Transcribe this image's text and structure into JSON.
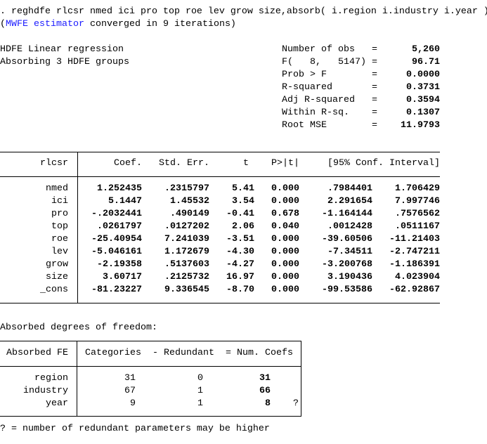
{
  "command": ". reghdfe rlcsr nmed ici pro top roe lev grow size,absorb( i.region i.industry i.year )",
  "convergence": {
    "open": "(",
    "link": "MWFE estimator",
    "rest": " converged in 9 iterations)"
  },
  "model_title": "HDFE Linear regression",
  "model_subtitle": "Absorbing 3 HDFE groups",
  "stats": [
    {
      "label": "Number of obs",
      "eq": "=",
      "value": "5,260"
    },
    {
      "label": "F(   8,   5147)",
      "eq": "=",
      "value": "96.71"
    },
    {
      "label": "Prob > F",
      "eq": "=",
      "value": "0.0000"
    },
    {
      "label": "R-squared",
      "eq": "=",
      "value": "0.3731"
    },
    {
      "label": "Adj R-squared",
      "eq": "=",
      "value": "0.3594"
    },
    {
      "label": "Within R-sq.",
      "eq": "=",
      "value": "0.1307"
    },
    {
      "label": "Root MSE",
      "eq": "=",
      "value": "11.9793"
    }
  ],
  "coef_table": {
    "depvar": "rlcsr",
    "headers": [
      "Coef.",
      "Std. Err.",
      "t",
      "P>|t|",
      "[95% Conf. Interval]"
    ],
    "rows": [
      {
        "var": "nmed",
        "values": [
          "1.252435",
          ".2315797",
          "5.41",
          "0.000",
          ".7984401",
          "1.706429"
        ]
      },
      {
        "var": "ici",
        "values": [
          "5.1447",
          "1.45532",
          "3.54",
          "0.000",
          "2.291654",
          "7.997746"
        ]
      },
      {
        "var": "pro",
        "values": [
          "-.2032441",
          ".490149",
          "-0.41",
          "0.678",
          "-1.164144",
          ".7576562"
        ]
      },
      {
        "var": "top",
        "values": [
          ".0261797",
          ".0127202",
          "2.06",
          "0.040",
          ".0012428",
          ".0511167"
        ]
      },
      {
        "var": "roe",
        "values": [
          "-25.40954",
          "7.241039",
          "-3.51",
          "0.000",
          "-39.60506",
          "-11.21403"
        ]
      },
      {
        "var": "lev",
        "values": [
          "-5.046161",
          "1.172679",
          "-4.30",
          "0.000",
          "-7.34511",
          "-2.747211"
        ]
      },
      {
        "var": "grow",
        "values": [
          "-2.19358",
          ".5137603",
          "-4.27",
          "0.000",
          "-3.200768",
          "-1.186391"
        ]
      },
      {
        "var": "size",
        "values": [
          "3.60717",
          ".2125732",
          "16.97",
          "0.000",
          "3.190436",
          "4.023904"
        ]
      },
      {
        "var": "_cons",
        "values": [
          "-81.23227",
          "9.336545",
          "-8.70",
          "0.000",
          "-99.53586",
          "-62.92867"
        ]
      }
    ]
  },
  "absorbed": {
    "title": "Absorbed degrees of freedom:",
    "headers": [
      "Absorbed FE",
      "Categories",
      "- Redundant",
      "= Num. Coefs"
    ],
    "rows": [
      {
        "fe": "region",
        "categories": "31",
        "redundant": "0",
        "coefs": "31",
        "flag": ""
      },
      {
        "fe": "industry",
        "categories": "67",
        "redundant": "1",
        "coefs": "66",
        "flag": ""
      },
      {
        "fe": "year",
        "categories": "9",
        "redundant": "1",
        "coefs": "8",
        "flag": "?"
      }
    ],
    "footnote": "? = number of redundant parameters may be higher"
  },
  "colors": {
    "text": "#000000",
    "link": "#1a1aff",
    "background": "#ffffff"
  }
}
